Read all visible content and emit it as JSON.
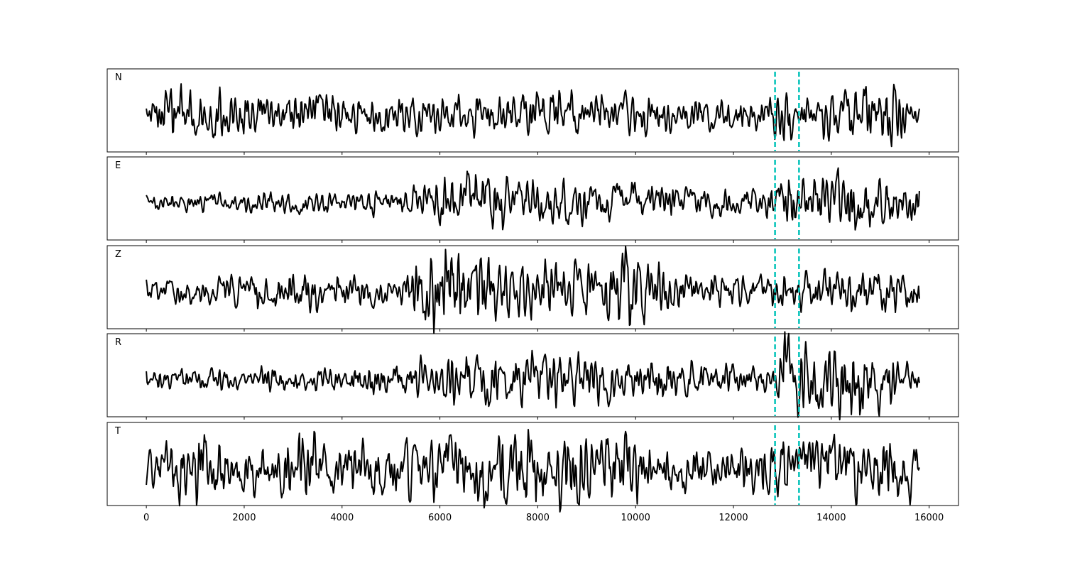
{
  "chart_data": {
    "type": "line",
    "title": "",
    "xlabel": "",
    "ylabel": "",
    "xlim": [
      -800,
      16600
    ],
    "x_ticks": [
      0,
      2000,
      4000,
      6000,
      8000,
      10000,
      12000,
      14000,
      16000
    ],
    "x_tick_labels": [
      "0",
      "2000",
      "4000",
      "6000",
      "8000",
      "10000",
      "12000",
      "14000",
      "16000"
    ],
    "x_range": [
      0,
      15800
    ],
    "grid": false,
    "line_color": "#000000",
    "marker_color": "#00c2b8",
    "markers": [
      12850,
      13340
    ],
    "series": [
      {
        "name": "N",
        "amplitude": 0.35,
        "envelope": [
          [
            0,
            0.25
          ],
          [
            600,
            0.55
          ],
          [
            1200,
            0.5
          ],
          [
            2500,
            0.35
          ],
          [
            3400,
            0.45
          ],
          [
            4500,
            0.3
          ],
          [
            6000,
            0.4
          ],
          [
            8000,
            0.45
          ],
          [
            9500,
            0.4
          ],
          [
            11000,
            0.3
          ],
          [
            12800,
            0.3
          ],
          [
            13050,
            0.85
          ],
          [
            13300,
            0.35
          ],
          [
            15300,
            0.6
          ],
          [
            15800,
            0.3
          ]
        ]
      },
      {
        "name": "E",
        "amplitude": 0.35,
        "envelope": [
          [
            0,
            0.18
          ],
          [
            2000,
            0.2
          ],
          [
            4000,
            0.18
          ],
          [
            5000,
            0.25
          ],
          [
            6000,
            0.45
          ],
          [
            6600,
            0.6
          ],
          [
            7500,
            0.45
          ],
          [
            9000,
            0.4
          ],
          [
            10500,
            0.35
          ],
          [
            12000,
            0.25
          ],
          [
            12850,
            0.35
          ],
          [
            13000,
            0.9
          ],
          [
            13300,
            0.5
          ],
          [
            14500,
            0.55
          ],
          [
            15800,
            0.35
          ]
        ]
      },
      {
        "name": "Z",
        "amplitude": 0.35,
        "envelope": [
          [
            0,
            0.2
          ],
          [
            2000,
            0.3
          ],
          [
            3500,
            0.35
          ],
          [
            5000,
            0.25
          ],
          [
            6100,
            0.95
          ],
          [
            6600,
            0.65
          ],
          [
            7500,
            0.7
          ],
          [
            9000,
            0.5
          ],
          [
            9900,
            0.75
          ],
          [
            11000,
            0.3
          ],
          [
            13000,
            0.3
          ],
          [
            13300,
            0.35
          ],
          [
            14700,
            0.45
          ],
          [
            15800,
            0.3
          ]
        ]
      },
      {
        "name": "R",
        "amplitude": 0.35,
        "envelope": [
          [
            0,
            0.2
          ],
          [
            2000,
            0.22
          ],
          [
            4000,
            0.22
          ],
          [
            5200,
            0.3
          ],
          [
            6200,
            0.45
          ],
          [
            7000,
            0.55
          ],
          [
            8000,
            0.5
          ],
          [
            9500,
            0.45
          ],
          [
            11000,
            0.35
          ],
          [
            12800,
            0.3
          ],
          [
            13050,
            1.0
          ],
          [
            13300,
            0.6
          ],
          [
            14200,
            0.8
          ],
          [
            15200,
            0.6
          ],
          [
            15800,
            0.3
          ]
        ]
      },
      {
        "name": "T",
        "amplitude": 0.35,
        "envelope": [
          [
            0,
            0.35
          ],
          [
            800,
            0.7
          ],
          [
            1600,
            0.55
          ],
          [
            2500,
            0.45
          ],
          [
            3300,
            0.85
          ],
          [
            4000,
            0.45
          ],
          [
            6000,
            0.6
          ],
          [
            7500,
            0.8
          ],
          [
            9000,
            0.65
          ],
          [
            10500,
            0.55
          ],
          [
            12000,
            0.35
          ],
          [
            13050,
            0.9
          ],
          [
            13300,
            0.5
          ],
          [
            15700,
            0.8
          ],
          [
            15800,
            0.4
          ]
        ]
      }
    ]
  }
}
